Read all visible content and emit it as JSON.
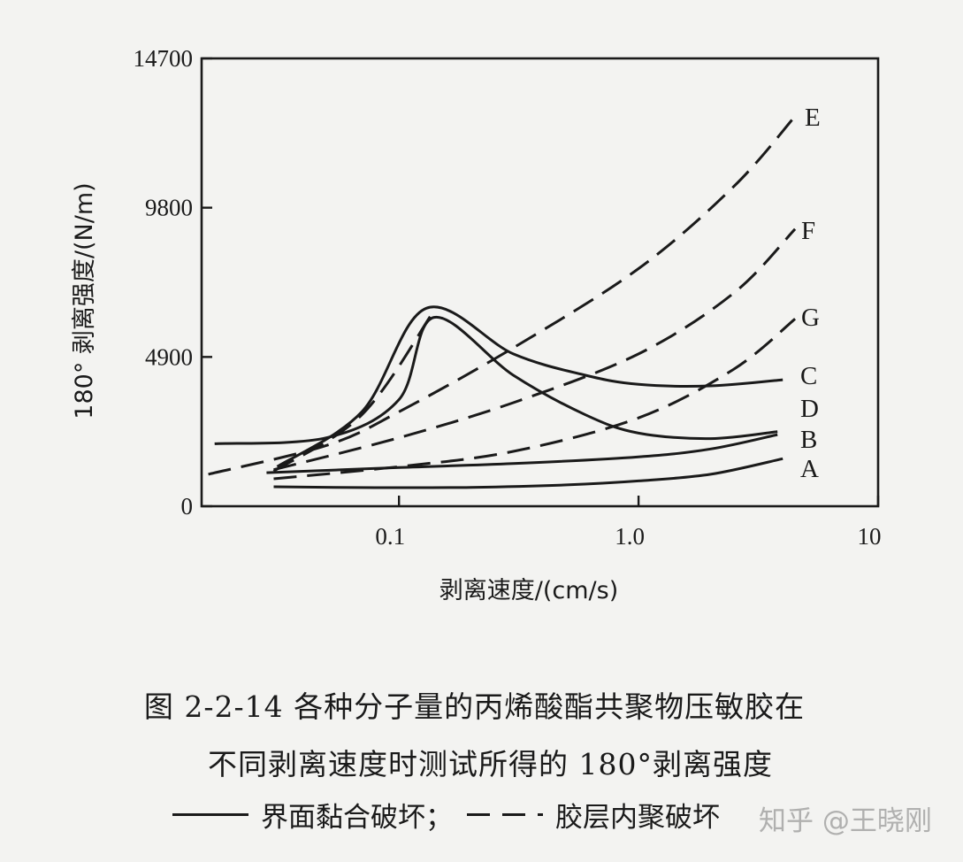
{
  "chart_data": {
    "type": "line",
    "xscale": "log",
    "xlim": [
      0.015,
      10
    ],
    "ylim": [
      0,
      14700
    ],
    "xticks": [
      {
        "value": 0.1,
        "label": "0.1"
      },
      {
        "value": 1.0,
        "label": "1.0"
      },
      {
        "value": 10,
        "label": "10"
      }
    ],
    "yticks": [
      {
        "value": 0,
        "label": "0"
      },
      {
        "value": 4900,
        "label": "4900"
      },
      {
        "value": 9800,
        "label": "9800"
      },
      {
        "value": 14700,
        "label": "14700"
      }
    ],
    "xlabel": "剥离速度/(cm/s)",
    "ylabel": "180° 剥离强度/(N/m)",
    "legend": [
      {
        "style": "solid",
        "label": "界面黏合破坏；"
      },
      {
        "style": "dashed",
        "label": "胶层内聚破坏"
      }
    ],
    "series": [
      {
        "name": "A",
        "style": "solid",
        "points": [
          [
            0.03,
            640
          ],
          [
            0.08,
            610
          ],
          [
            0.2,
            620
          ],
          [
            0.5,
            700
          ],
          [
            1.0,
            830
          ],
          [
            2.0,
            1050
          ],
          [
            4.0,
            1560
          ]
        ]
      },
      {
        "name": "B",
        "style": "solid",
        "points": [
          [
            0.028,
            1100
          ],
          [
            0.1,
            1270
          ],
          [
            0.3,
            1400
          ],
          [
            1.0,
            1620
          ],
          [
            2.0,
            1880
          ],
          [
            3.8,
            2350
          ]
        ]
      },
      {
        "name": "C",
        "style": "solid",
        "points": [
          [
            0.031,
            1300
          ],
          [
            0.07,
            3100
          ],
          [
            0.13,
            6500
          ],
          [
            0.3,
            5000
          ],
          [
            0.6,
            4300
          ],
          [
            1.0,
            4000
          ],
          [
            2.0,
            3950
          ],
          [
            4.0,
            4150
          ]
        ]
      },
      {
        "name": "D",
        "style": "solid",
        "points": [
          [
            0.017,
            2050
          ],
          [
            0.05,
            2250
          ],
          [
            0.1,
            3500
          ],
          [
            0.14,
            6200
          ],
          [
            0.3,
            4300
          ],
          [
            0.6,
            3000
          ],
          [
            1.0,
            2400
          ],
          [
            2.0,
            2220
          ],
          [
            3.8,
            2450
          ]
        ]
      },
      {
        "name": "E",
        "style": "dashed",
        "points": [
          [
            0.016,
            1050
          ],
          [
            0.05,
            2000
          ],
          [
            0.1,
            3100
          ],
          [
            0.3,
            5200
          ],
          [
            1.0,
            7800
          ],
          [
            2.5,
            10500
          ],
          [
            4.5,
            12800
          ]
        ]
      },
      {
        "name": "F",
        "style": "dashed",
        "points": [
          [
            0.03,
            1200
          ],
          [
            0.1,
            2250
          ],
          [
            0.3,
            3400
          ],
          [
            1.0,
            5000
          ],
          [
            2.5,
            7000
          ],
          [
            4.5,
            9100
          ]
        ]
      },
      {
        "name": "G",
        "style": "dashed",
        "points": [
          [
            0.03,
            900
          ],
          [
            0.1,
            1300
          ],
          [
            0.3,
            1800
          ],
          [
            1.0,
            2900
          ],
          [
            2.5,
            4500
          ],
          [
            4.5,
            6150
          ]
        ]
      },
      {
        "name": "",
        "style": "dashed",
        "points": [
          [
            0.03,
            1150
          ],
          [
            0.07,
            3000
          ],
          [
            0.137,
            6300
          ]
        ]
      }
    ]
  },
  "caption": {
    "line1": "图 2-2-14   各种分子量的丙烯酸酯共聚物压敏胶在",
    "line2": "不同剥离速度时测试所得的 180°剥离强度"
  },
  "watermark": "知乎 @王晓刚"
}
